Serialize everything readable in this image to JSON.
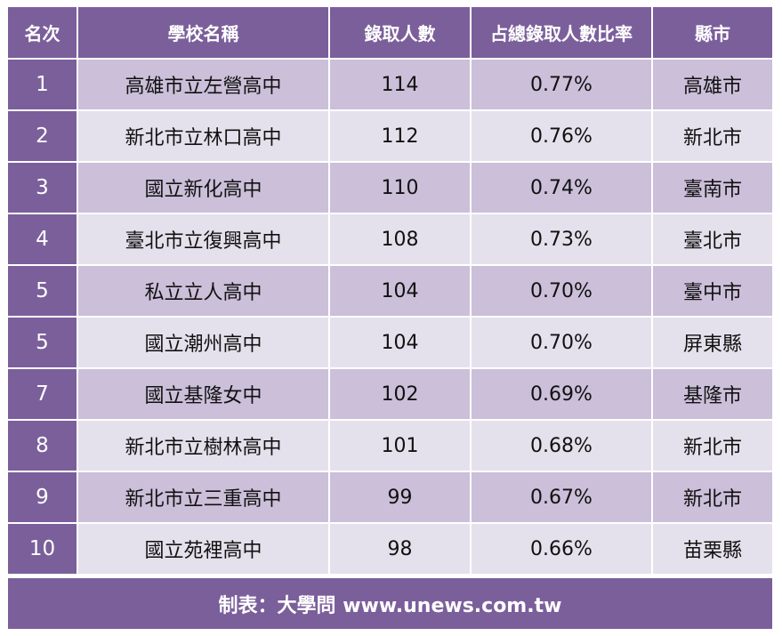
{
  "table": {
    "headers": [
      "名次",
      "學校名稱",
      "錄取人數",
      "占總錄取人數比率",
      "縣市"
    ],
    "rows": [
      {
        "rank": "1",
        "school": "高雄市立左營高中",
        "admitted": "114",
        "ratio": "0.77%",
        "city": "高雄市"
      },
      {
        "rank": "2",
        "school": "新北市立林口高中",
        "admitted": "112",
        "ratio": "0.76%",
        "city": "新北市"
      },
      {
        "rank": "3",
        "school": "國立新化高中",
        "admitted": "110",
        "ratio": "0.74%",
        "city": "臺南市"
      },
      {
        "rank": "4",
        "school": "臺北市立復興高中",
        "admitted": "108",
        "ratio": "0.73%",
        "city": "臺北市"
      },
      {
        "rank": "5",
        "school": "私立立人高中",
        "admitted": "104",
        "ratio": "0.70%",
        "city": "臺中市"
      },
      {
        "rank": "5",
        "school": "國立潮州高中",
        "admitted": "104",
        "ratio": "0.70%",
        "city": "屏東縣"
      },
      {
        "rank": "7",
        "school": "國立基隆女中",
        "admitted": "102",
        "ratio": "0.69%",
        "city": "基隆市"
      },
      {
        "rank": "8",
        "school": "新北市立樹林高中",
        "admitted": "101",
        "ratio": "0.68%",
        "city": "新北市"
      },
      {
        "rank": "9",
        "school": "新北市立三重高中",
        "admitted": "99",
        "ratio": "0.67%",
        "city": "新北市"
      },
      {
        "rank": "10",
        "school": "國立苑裡高中",
        "admitted": "98",
        "ratio": "0.66%",
        "city": "苗栗縣"
      }
    ]
  },
  "footer": {
    "credit": "制表：大學問 www.unews.com.tw"
  },
  "colors": {
    "header_bg": "#7b5f9b",
    "row_odd": "#cbbfd9",
    "row_even": "#e5e1ec"
  }
}
